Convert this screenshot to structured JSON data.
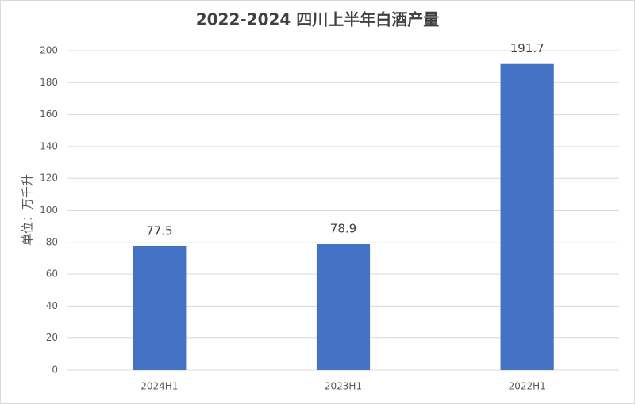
{
  "chart_data": {
    "type": "bar",
    "title": "2022-2024 四川上半年白酒产量",
    "y_label": "单位：万千升",
    "categories": [
      "2024H1",
      "2023H1",
      "2022H1"
    ],
    "values": [
      77.5,
      78.9,
      191.7
    ],
    "color": "#4472c4",
    "ylim": [
      0,
      200
    ],
    "yticks": [
      0,
      20,
      40,
      60,
      80,
      100,
      120,
      140,
      160,
      180,
      200
    ],
    "grid": true
  }
}
